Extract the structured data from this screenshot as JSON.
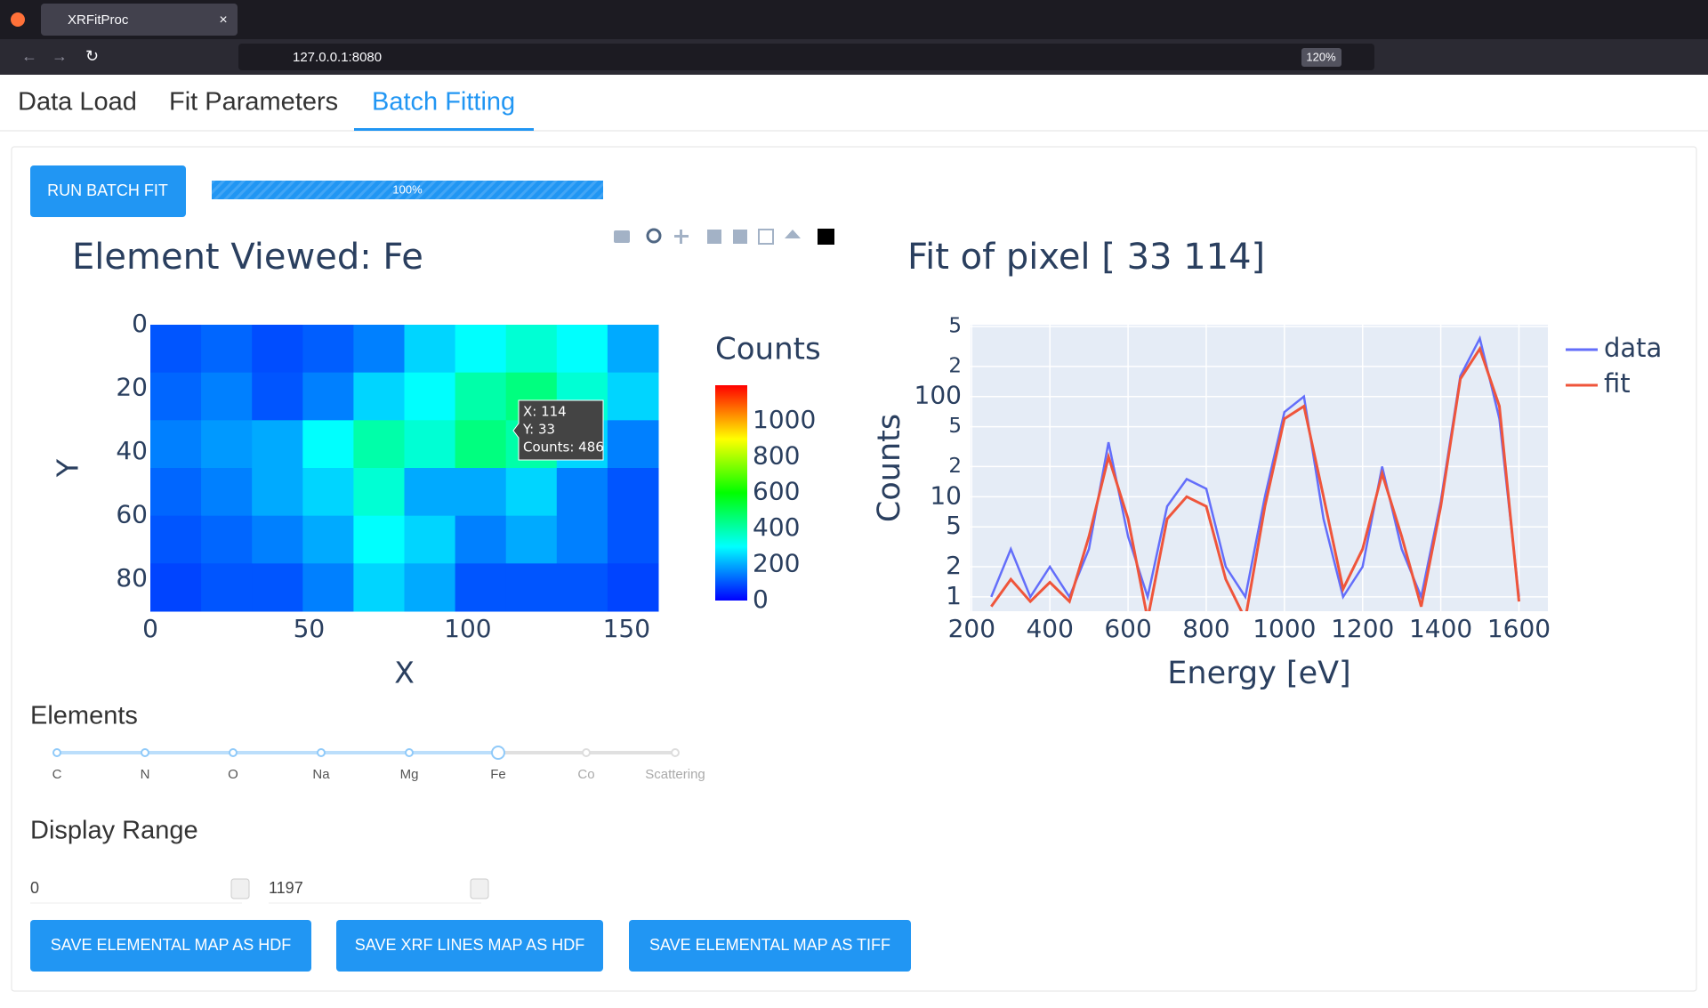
{
  "browser": {
    "tab_title": "XRFitProc",
    "url": "127.0.0.1:8080",
    "zoom": "120%"
  },
  "tabs": [
    "Data Load",
    "Fit Parameters",
    "Batch Fitting"
  ],
  "run_button": "RUN BATCH FIT",
  "progress": {
    "value": 100,
    "label": "100%"
  },
  "elements_label": "Elements",
  "elements": [
    "C",
    "N",
    "O",
    "Na",
    "Mg",
    "Fe",
    "Co",
    "Scattering"
  ],
  "selected_element": "Fe",
  "display_range_label": "Display Range",
  "display_range": [
    0,
    1197
  ],
  "save_buttons": [
    "SAVE ELEMENTAL MAP AS HDF",
    "SAVE XRF LINES MAP AS HDF",
    "SAVE ELEMENTAL MAP AS TIFF"
  ],
  "chart_data": [
    {
      "type": "heatmap",
      "title": "Element Viewed: Fe",
      "x_label": "X",
      "y_label": "Y",
      "xlim": [
        0,
        160
      ],
      "xticks": [
        0,
        50,
        100,
        150
      ],
      "ylim": [
        90,
        0
      ],
      "yticks": [
        0,
        20,
        40,
        60,
        80
      ],
      "colorbar_title": "Counts",
      "zlim": [
        0,
        1197
      ],
      "zticks": [
        0,
        200,
        400,
        600,
        800,
        1000
      ],
      "colorscale": [
        "#0000ff",
        "#00ffff",
        "#00ff00",
        "#ffff00",
        "#ff0000"
      ],
      "z": [
        [
          100,
          120,
          90,
          110,
          150,
          250,
          300,
          350,
          300,
          200
        ],
        [
          120,
          150,
          100,
          150,
          250,
          300,
          400,
          450,
          350,
          250
        ],
        [
          150,
          180,
          200,
          300,
          400,
          350,
          450,
          400,
          250,
          150
        ],
        [
          120,
          150,
          200,
          250,
          350,
          200,
          200,
          250,
          150,
          100
        ],
        [
          100,
          120,
          150,
          200,
          300,
          250,
          150,
          200,
          150,
          100
        ],
        [
          80,
          100,
          100,
          150,
          250,
          200,
          100,
          100,
          100,
          80
        ]
      ],
      "tooltip": [
        "X: 114",
        "Y: 33",
        "Counts: 486"
      ]
    },
    {
      "type": "line",
      "title": "Fit of pixel [ 33 114]",
      "x_label": "Energy [eV]",
      "y_label": "Counts",
      "log_y": true,
      "grid": true,
      "legend": "right",
      "xlim": [
        197,
        1674
      ],
      "xticks": [
        200,
        400,
        600,
        800,
        1000,
        1200,
        1400,
        1600
      ],
      "ylim": [
        0.72,
        521
      ],
      "yticks": [
        1,
        2,
        5,
        10,
        {
          "value": 20,
          "label": "2"
        },
        {
          "value": 50,
          "label": "5"
        },
        100,
        {
          "value": 200,
          "label": "2"
        },
        {
          "value": 500,
          "label": "5"
        }
      ],
      "x": [
        250,
        300,
        350,
        400,
        450,
        500,
        550,
        600,
        650,
        700,
        750,
        800,
        850,
        900,
        950,
        1000,
        1050,
        1100,
        1150,
        1200,
        1250,
        1300,
        1350,
        1400,
        1450,
        1500,
        1550,
        1600
      ],
      "series": [
        {
          "name": "data",
          "color": "#636efa",
          "values": [
            1,
            3,
            1,
            2,
            1,
            3,
            35,
            4,
            1,
            8,
            15,
            12,
            2,
            1,
            10,
            70,
            100,
            6,
            1,
            2,
            20,
            3,
            1,
            9,
            160,
            380,
            60,
            1
          ]
        },
        {
          "name": "fit",
          "color": "#ef553b",
          "values": [
            0.8,
            1.5,
            0.9,
            1.4,
            0.9,
            4,
            25,
            6,
            0.6,
            6,
            10,
            8,
            1.5,
            0.6,
            8,
            60,
            80,
            10,
            1.2,
            3,
            17,
            4,
            0.8,
            8,
            150,
            300,
            80,
            0.9
          ]
        }
      ]
    }
  ]
}
